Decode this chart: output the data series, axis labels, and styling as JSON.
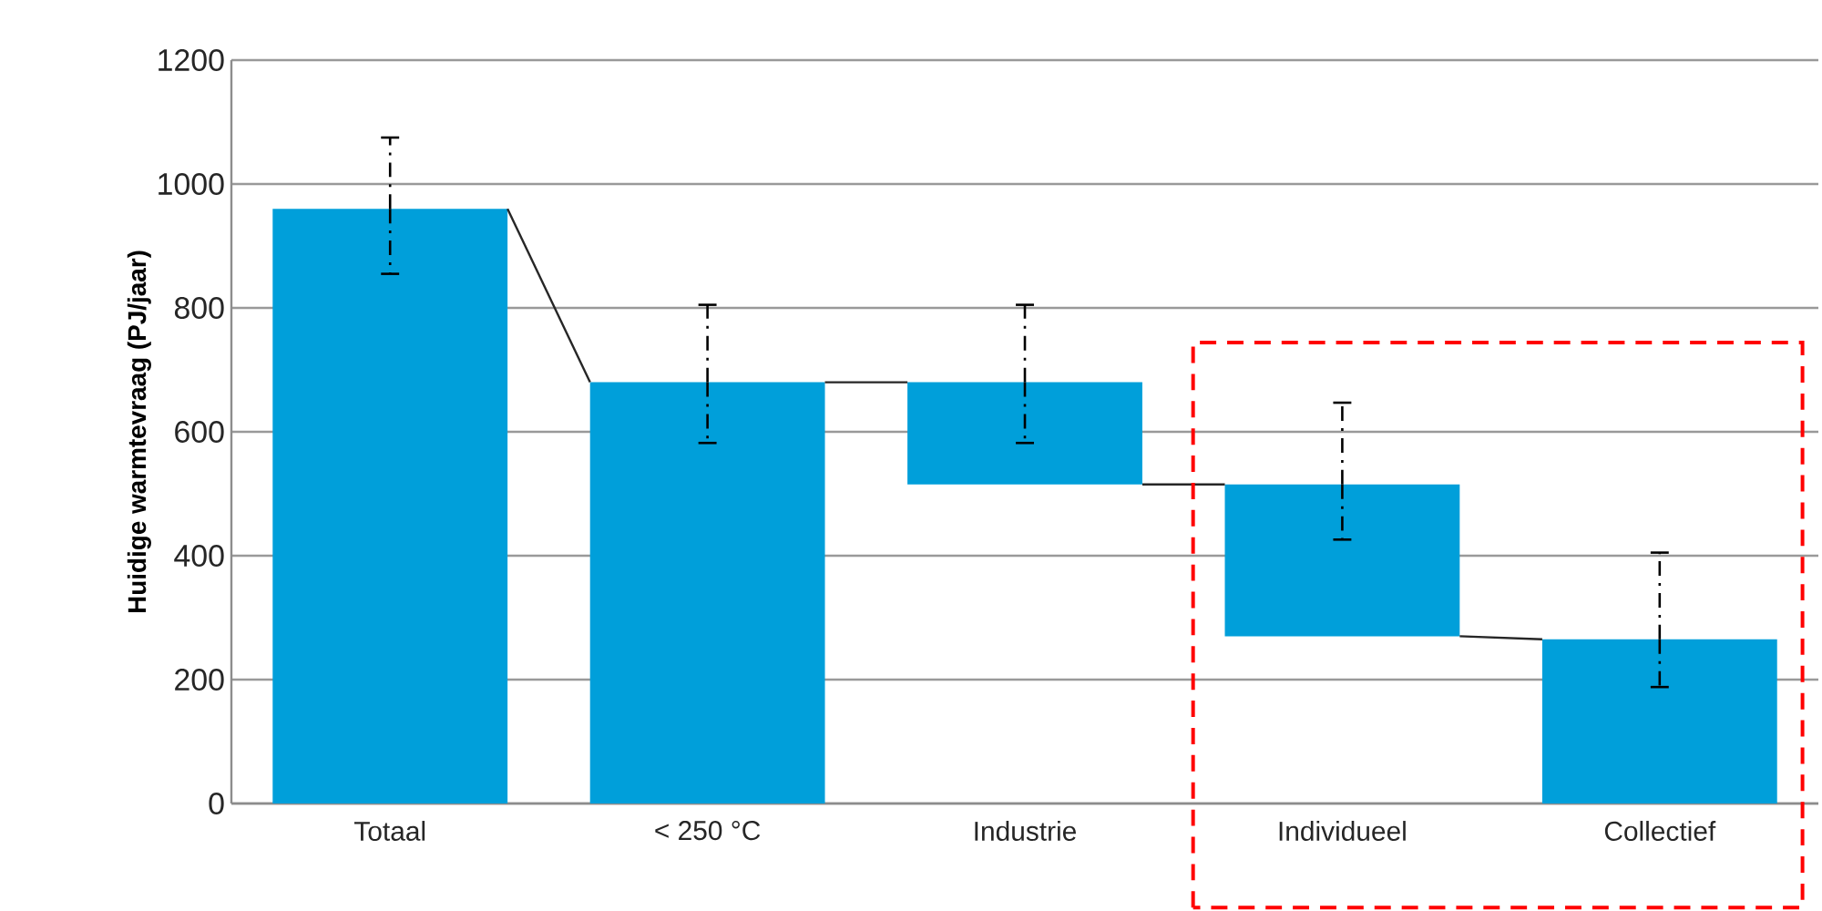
{
  "chart_data": {
    "type": "bar",
    "ylabel": "Huidige warmtevraag (PJ/jaar)",
    "categories": [
      "Totaal",
      "< 250 °C",
      "Industrie",
      "Individueel",
      "Collectief"
    ],
    "values": [
      960,
      680,
      165,
      245,
      265
    ],
    "base": [
      0,
      0,
      515,
      270,
      0
    ],
    "errors": [
      [
        855,
        1075
      ],
      [
        582,
        805
      ],
      [
        582,
        805
      ],
      [
        426,
        647
      ],
      [
        188,
        405
      ]
    ],
    "color": "#009fda",
    "ylim": [
      0,
      1200
    ],
    "yticks": [
      0,
      200,
      400,
      600,
      800,
      1000,
      1200
    ],
    "grid": "y"
  }
}
